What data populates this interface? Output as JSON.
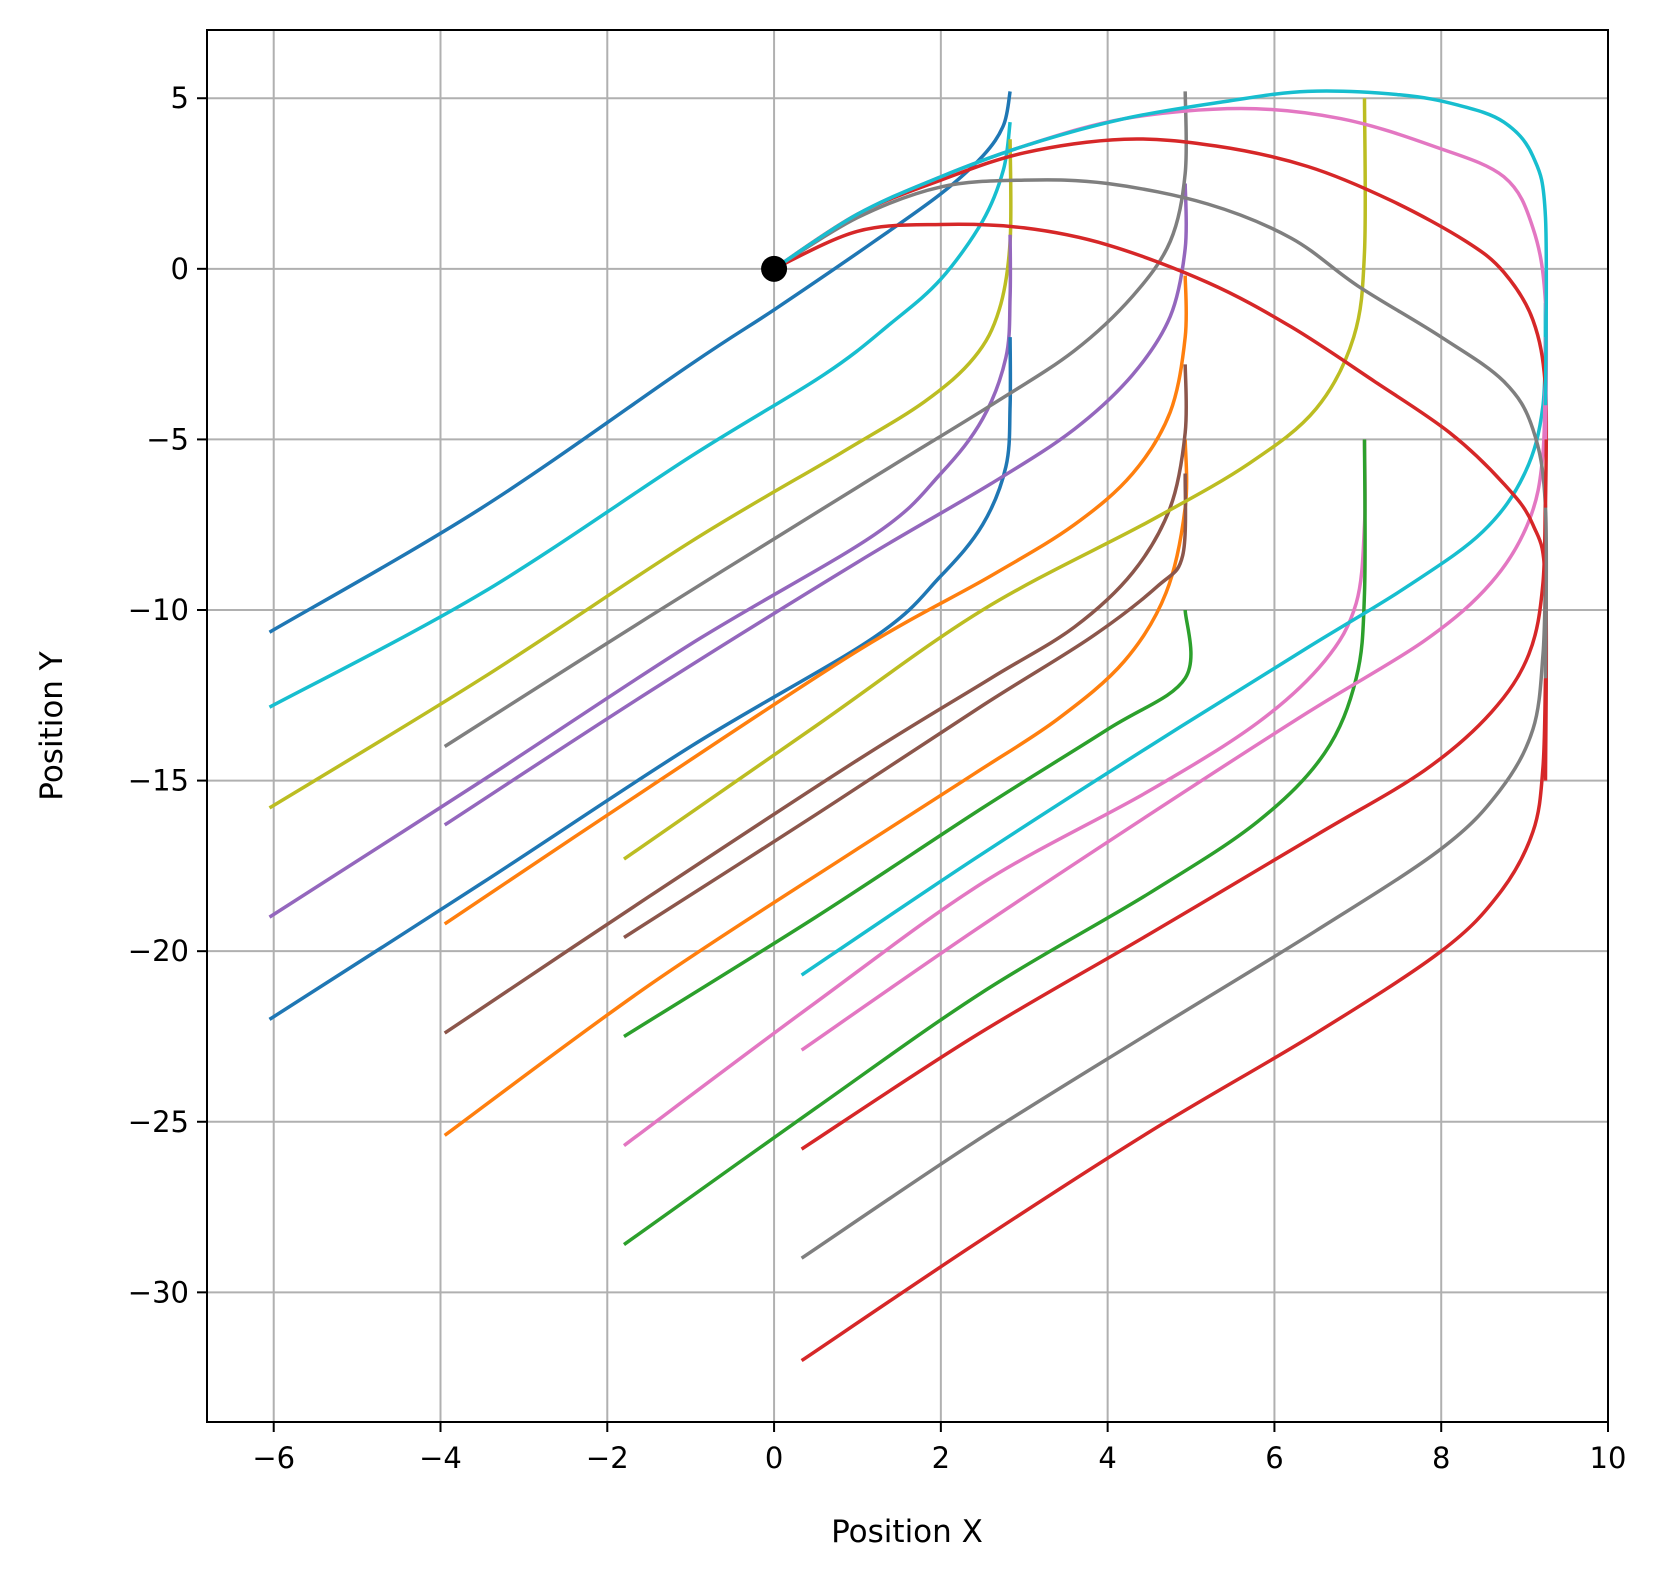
{
  "chart_data": {
    "type": "line",
    "title": "",
    "xlabel": "Position X",
    "ylabel": "Position Y",
    "xlim": [
      -6.8,
      10
    ],
    "ylim": [
      -33.8,
      7
    ],
    "x_ticks": [
      -6,
      -4,
      -2,
      0,
      2,
      4,
      6,
      8,
      10
    ],
    "y_ticks": [
      5,
      0,
      -5,
      -10,
      -15,
      -20,
      -25,
      -30
    ],
    "x_tick_labels": [
      "−6",
      "−4",
      "−2",
      "0",
      "2",
      "4",
      "6",
      "8",
      "10"
    ],
    "y_tick_labels": [
      "5",
      "0",
      "−5",
      "−10",
      "−15",
      "−20",
      "−25",
      "−30"
    ],
    "grid": true,
    "legend": "none",
    "origin_marker": {
      "x": 0,
      "y": 0,
      "color": "#000000"
    },
    "series": [
      {
        "color": "#1f77b4",
        "x": [
          -6.05,
          -3.5,
          -1.0,
          0.0,
          1.2,
          2.0,
          2.5,
          2.75,
          2.83
        ],
        "y": [
          -10.65,
          -7.0,
          -2.8,
          -1.2,
          0.8,
          2.2,
          3.3,
          4.2,
          5.2
        ]
      },
      {
        "color": "#17becf",
        "x": [
          -6.05,
          -3.5,
          -1.0,
          0.6,
          1.4,
          2.0,
          2.5,
          2.75,
          2.83
        ],
        "y": [
          -12.85,
          -9.5,
          -5.5,
          -3.1,
          -1.6,
          -0.3,
          1.4,
          2.9,
          4.3
        ]
      },
      {
        "color": "#bcbd22",
        "x": [
          -6.05,
          -3.5,
          -1.0,
          0.8,
          1.8,
          2.4,
          2.7,
          2.83,
          2.83
        ],
        "y": [
          -15.8,
          -12.0,
          -8.0,
          -5.4,
          -3.9,
          -2.6,
          -1.2,
          0.8,
          3.8
        ]
      },
      {
        "color": "#9467bd",
        "x": [
          -6.05,
          -3.5,
          -1.0,
          1.2,
          2.0,
          2.5,
          2.78,
          2.83,
          2.83
        ],
        "y": [
          -19.0,
          -15.0,
          -11.0,
          -7.8,
          -6.0,
          -4.4,
          -2.6,
          -0.8,
          1.0
        ]
      },
      {
        "color": "#1f77b4",
        "x": [
          -6.05,
          -3.5,
          -1.0,
          1.2,
          2.0,
          2.5,
          2.78,
          2.83,
          2.83
        ],
        "y": [
          -22.0,
          -18.0,
          -14.0,
          -10.8,
          -9.0,
          -7.5,
          -5.8,
          -4.0,
          -2.0
        ]
      },
      {
        "color": "#ff7f0e",
        "x": [
          -3.95,
          -1.5,
          1.0,
          2.4,
          3.4,
          4.2,
          4.7,
          4.93,
          4.93
        ],
        "y": [
          -25.4,
          -21.0,
          -17.0,
          -14.8,
          -13.2,
          -11.5,
          -9.5,
          -7.0,
          -5.0
        ]
      },
      {
        "color": "#ff7f0e",
        "x": [
          -3.95,
          -1.5,
          1.0,
          2.6,
          3.6,
          4.3,
          4.75,
          4.93,
          4.93
        ],
        "y": [
          -19.2,
          -15.2,
          -11.2,
          -9.0,
          -7.5,
          -6.0,
          -4.2,
          -2.0,
          -0.2
        ]
      },
      {
        "color": "#8c564b",
        "x": [
          -3.95,
          -1.5,
          1.0,
          2.6,
          3.6,
          4.3,
          4.75,
          4.93,
          4.93
        ],
        "y": [
          -22.4,
          -18.4,
          -14.4,
          -12.0,
          -10.5,
          -8.9,
          -7.0,
          -4.8,
          -2.8
        ]
      },
      {
        "color": "#8c564b",
        "x": [
          -1.8,
          0.5,
          2.5,
          3.8,
          4.6,
          4.9,
          4.93
        ],
        "y": [
          -19.6,
          -16.0,
          -12.8,
          -10.8,
          -9.3,
          -8.4,
          -6.0
        ]
      },
      {
        "color": "#2ca02c",
        "x": [
          -1.8,
          0.5,
          2.5,
          4.0,
          4.93,
          4.93
        ],
        "y": [
          -22.5,
          -19.0,
          -15.8,
          -13.5,
          -12.0,
          -10.0
        ]
      },
      {
        "color": "#9467bd",
        "x": [
          -3.95,
          -1.5,
          1.0,
          2.6,
          3.6,
          4.3,
          4.75,
          4.93,
          4.93
        ],
        "y": [
          -16.3,
          -12.4,
          -8.6,
          -6.3,
          -4.7,
          -3.1,
          -1.4,
          0.6,
          2.5
        ]
      },
      {
        "color": "#7f7f7f",
        "x": [
          -3.95,
          -1.5,
          1.0,
          2.6,
          3.6,
          4.3,
          4.75,
          4.93,
          4.93
        ],
        "y": [
          -14.0,
          -10.2,
          -6.4,
          -4.0,
          -2.4,
          -0.8,
          0.8,
          2.8,
          5.2
        ]
      },
      {
        "color": "#bcbd22",
        "x": [
          -1.8,
          0.5,
          2.5,
          4.5,
          5.7,
          6.5,
          6.95,
          7.08,
          7.08
        ],
        "y": [
          -17.3,
          -13.4,
          -10.0,
          -7.4,
          -5.7,
          -4.1,
          -2.0,
          0.5,
          5.0
        ]
      },
      {
        "color": "#e377c2",
        "x": [
          -1.8,
          0.5,
          2.5,
          4.5,
          5.8,
          6.6,
          6.98,
          7.08,
          7.08
        ],
        "y": [
          -25.7,
          -21.5,
          -18.0,
          -15.3,
          -13.3,
          -11.5,
          -9.8,
          -7.5,
          -5.0
        ]
      },
      {
        "color": "#2ca02c",
        "x": [
          -1.8,
          0.5,
          2.5,
          4.5,
          5.8,
          6.6,
          6.98,
          7.08,
          7.08
        ],
        "y": [
          -28.6,
          -24.6,
          -21.2,
          -18.3,
          -16.2,
          -14.2,
          -12.0,
          -9.5,
          -5.0
        ]
      },
      {
        "color": "#17becf",
        "x": [
          0.33,
          2.4,
          4.5,
          6.4,
          7.6,
          8.5,
          9.0,
          9.22,
          9.25
        ],
        "y": [
          -20.7,
          -17.3,
          -14.0,
          -11.1,
          -9.3,
          -7.7,
          -6.0,
          -4.0,
          -1.0
        ]
      },
      {
        "color": "#e377c2",
        "x": [
          0.33,
          2.4,
          4.5,
          6.4,
          7.8,
          8.6,
          9.05,
          9.22,
          9.25
        ],
        "y": [
          -22.9,
          -19.4,
          -16.0,
          -13.0,
          -10.9,
          -9.2,
          -7.4,
          -5.4,
          -2.0
        ]
      },
      {
        "color": "#d62728",
        "x": [
          0.33,
          2.4,
          4.5,
          6.5,
          7.8,
          8.6,
          9.05,
          9.22,
          9.25
        ],
        "y": [
          -25.8,
          -22.5,
          -19.5,
          -16.6,
          -14.7,
          -13.0,
          -11.3,
          -9.2,
          -6.0
        ]
      },
      {
        "color": "#7f7f7f",
        "x": [
          0.33,
          2.4,
          4.5,
          6.5,
          8.0,
          8.7,
          9.1,
          9.22,
          9.25
        ],
        "y": [
          -29.0,
          -25.6,
          -22.4,
          -19.4,
          -17.0,
          -15.3,
          -13.5,
          -11.3,
          -9.0
        ]
      },
      {
        "color": "#d62728",
        "x": [
          0.33,
          2.4,
          4.5,
          6.5,
          8.0,
          8.7,
          9.1,
          9.22,
          9.25
        ],
        "y": [
          -32.0,
          -28.6,
          -25.3,
          -22.4,
          -20.0,
          -18.3,
          -16.5,
          -14.6,
          -12.0
        ]
      },
      {
        "color": "#d62728",
        "x": [
          0.0,
          1.0,
          2.0,
          3.0,
          4.0,
          5.2,
          6.2,
          7.2,
          8.1,
          8.75,
          9.1,
          9.25,
          9.25
        ],
        "y": [
          0.0,
          1.1,
          1.3,
          1.2,
          0.7,
          -0.4,
          -1.7,
          -3.3,
          -4.8,
          -6.3,
          -7.5,
          -9.2,
          -15.0
        ]
      },
      {
        "color": "#7f7f7f",
        "x": [
          0.0,
          1.0,
          2.0,
          3.0,
          4.0,
          5.2,
          6.2,
          7.0,
          8.0,
          8.75,
          9.1,
          9.25,
          9.25
        ],
        "y": [
          0.0,
          1.5,
          2.4,
          2.6,
          2.5,
          1.9,
          0.9,
          -0.5,
          -2.0,
          -3.3,
          -4.7,
          -7.0,
          -12.0
        ]
      },
      {
        "color": "#d62728",
        "x": [
          0.0,
          1.0,
          2.0,
          3.0,
          4.2,
          5.3,
          6.4,
          7.4,
          8.3,
          8.75,
          9.1,
          9.25,
          9.25
        ],
        "y": [
          0.0,
          1.6,
          2.6,
          3.4,
          3.8,
          3.6,
          3.0,
          2.0,
          0.8,
          -0.1,
          -1.5,
          -3.5,
          -7.0
        ]
      },
      {
        "color": "#e377c2",
        "x": [
          0.0,
          1.0,
          2.0,
          3.0,
          4.2,
          5.6,
          6.8,
          7.9,
          8.75,
          9.1,
          9.25,
          9.25
        ],
        "y": [
          0.0,
          1.6,
          2.7,
          3.6,
          4.4,
          4.7,
          4.4,
          3.6,
          2.7,
          1.2,
          -1.0,
          -5.0
        ]
      },
      {
        "color": "#17becf",
        "x": [
          0.0,
          1.0,
          2.0,
          3.0,
          4.2,
          5.4,
          6.4,
          7.5,
          8.2,
          8.75,
          9.1,
          9.25,
          9.25
        ],
        "y": [
          0.0,
          1.6,
          2.7,
          3.6,
          4.4,
          4.9,
          5.2,
          5.1,
          4.8,
          4.3,
          3.3,
          1.5,
          -4.0
        ]
      }
    ]
  }
}
